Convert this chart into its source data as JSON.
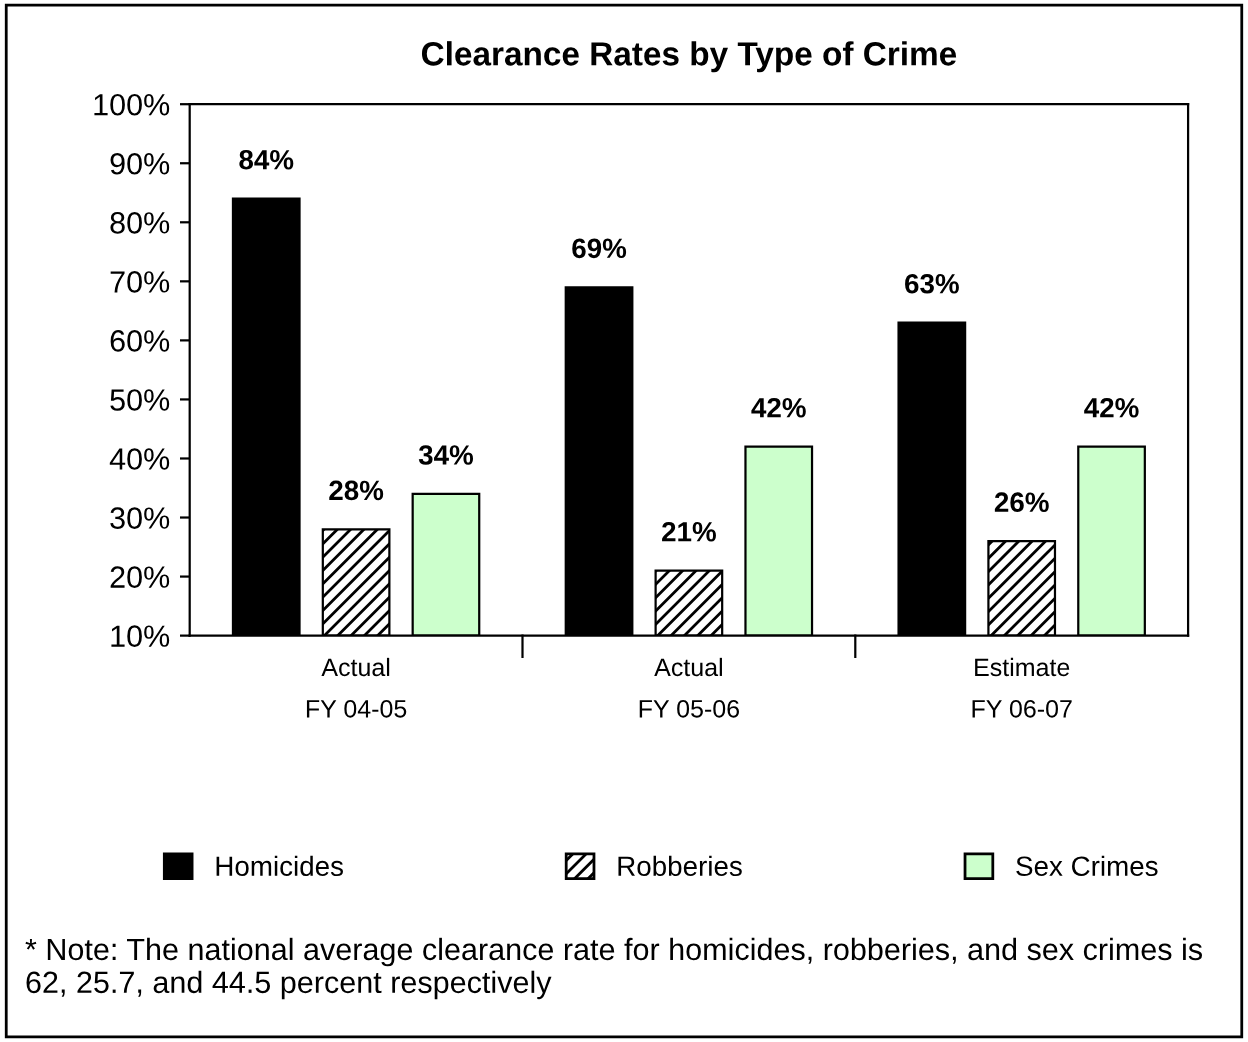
{
  "chart_data": {
    "type": "bar",
    "title": "Clearance Rates by Type of Crime",
    "categories": [
      "Actual\nFY 04-05",
      "Actual\nFY 05-06",
      "Estimate\nFY 06-07"
    ],
    "series": [
      {
        "name": "Homicides",
        "color": "#000000",
        "values": [
          84,
          69,
          63
        ],
        "value_labels": [
          "84%",
          "69%",
          "63%"
        ]
      },
      {
        "name": "Robberies",
        "color": "#000000",
        "values": [
          28,
          21,
          26
        ],
        "value_labels": [
          "28%",
          "21%",
          "26%"
        ]
      },
      {
        "name": "Sex Crimes",
        "color": "#ccffcc",
        "values": [
          34,
          42,
          42
        ],
        "value_labels": [
          "34%",
          "42%",
          "42%"
        ]
      }
    ],
    "ylim": [
      10,
      100
    ],
    "yticks": [
      {
        "value": 10,
        "label": "10%"
      },
      {
        "value": 20,
        "label": "20%"
      },
      {
        "value": 30,
        "label": "30%"
      },
      {
        "value": 40,
        "label": "40%"
      },
      {
        "value": 50,
        "label": "50%"
      },
      {
        "value": 60,
        "label": "60%"
      },
      {
        "value": 70,
        "label": "70%"
      },
      {
        "value": 80,
        "label": "80%"
      },
      {
        "value": 90,
        "label": "90%"
      },
      {
        "value": 100,
        "label": "100%"
      }
    ],
    "grid": false,
    "legend": "bottom",
    "annotations": [
      "* Note: The national average clearance rate for homicides, robberies, and sex crimes is 62, 25.7, and 44.5 percent respectively"
    ]
  }
}
